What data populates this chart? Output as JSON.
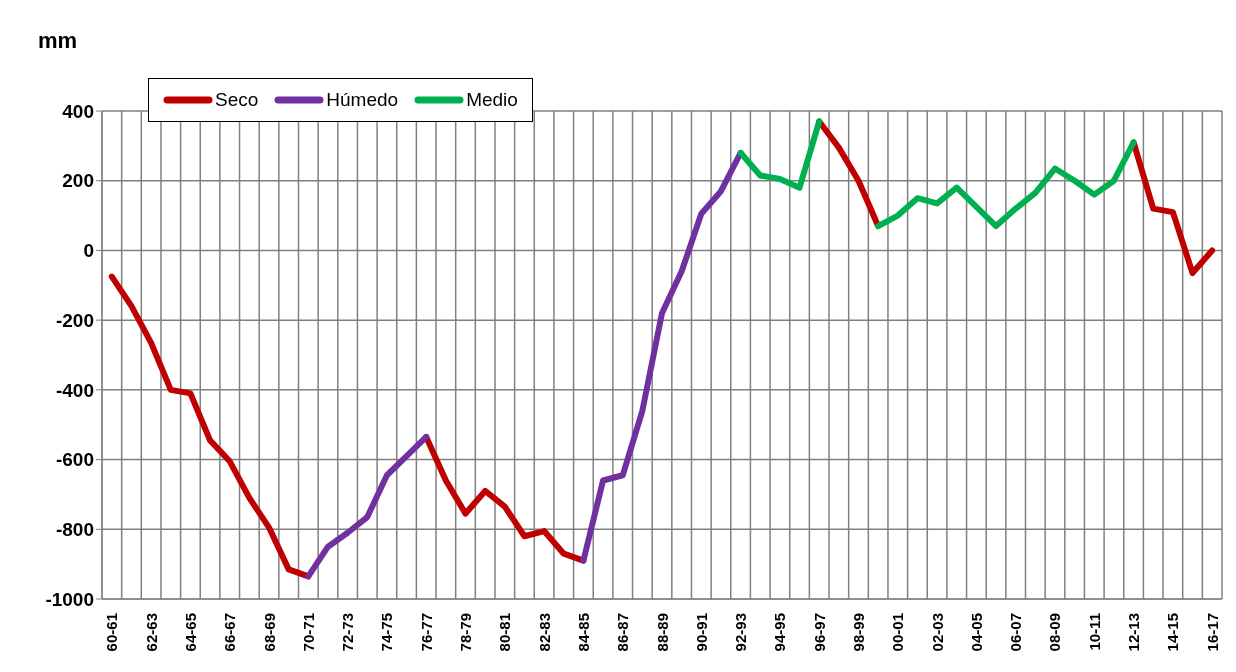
{
  "chart_data": {
    "type": "line",
    "ylabel": "mm",
    "categories": [
      "60-61",
      null,
      "62-63",
      null,
      "64-65",
      null,
      "66-67",
      null,
      "68-69",
      null,
      "70-71",
      null,
      "72-73",
      null,
      "74-75",
      null,
      "76-77",
      null,
      "78-79",
      null,
      "80-81",
      null,
      "82-83",
      null,
      "84-85",
      null,
      "86-87",
      null,
      "88-89",
      null,
      "90-91",
      null,
      "92-93",
      null,
      "94-95",
      null,
      "96-97",
      null,
      "98-99",
      null,
      "00-01",
      null,
      "02-03",
      null,
      "04-05",
      null,
      "06-07",
      null,
      "08-09",
      null,
      "10-11",
      null,
      "12-13",
      null,
      "14-15",
      null,
      "16-17"
    ],
    "series": [
      {
        "name": "Seco",
        "color": "#c00000",
        "values": [
          -75,
          -160,
          -265,
          -400,
          -410,
          -545,
          -605,
          -710,
          -795,
          -915,
          -935,
          null,
          null,
          null,
          null,
          null,
          -535,
          -660,
          -755,
          -690,
          -735,
          -820,
          -805,
          -870,
          -890,
          null,
          null,
          null,
          null,
          null,
          null,
          null,
          null,
          null,
          null,
          null,
          370,
          295,
          200,
          70,
          null,
          null,
          null,
          null,
          null,
          null,
          null,
          null,
          null,
          null,
          null,
          null,
          310,
          120,
          110,
          -65,
          0
        ]
      },
      {
        "name": "Húmedo",
        "color": "#7030a0",
        "values": [
          null,
          null,
          null,
          null,
          null,
          null,
          null,
          null,
          null,
          null,
          -935,
          -850,
          -810,
          -765,
          -645,
          -590,
          -535,
          null,
          null,
          null,
          null,
          null,
          null,
          null,
          -890,
          -660,
          -645,
          -460,
          -180,
          -60,
          105,
          170,
          280,
          null,
          null,
          null,
          null,
          null,
          null,
          null,
          null,
          null,
          null,
          null,
          null,
          null,
          null,
          null,
          null,
          null,
          null,
          null,
          null,
          null,
          null,
          null,
          null
        ]
      },
      {
        "name": "Medio",
        "color": "#00b050",
        "values": [
          null,
          null,
          null,
          null,
          null,
          null,
          null,
          null,
          null,
          null,
          null,
          null,
          null,
          null,
          null,
          null,
          null,
          null,
          null,
          null,
          null,
          null,
          null,
          null,
          null,
          null,
          null,
          null,
          null,
          null,
          null,
          null,
          280,
          215,
          205,
          180,
          370,
          null,
          null,
          70,
          100,
          150,
          135,
          180,
          125,
          70,
          120,
          165,
          235,
          200,
          160,
          200,
          310,
          null,
          null,
          null,
          null
        ]
      }
    ],
    "ylim": [
      -1000,
      400
    ],
    "yticks": [
      -1000,
      -800,
      -600,
      -400,
      -200,
      0,
      200,
      400
    ],
    "grid": true,
    "legend": "top left",
    "marker": "none",
    "line_style": "solid"
  }
}
